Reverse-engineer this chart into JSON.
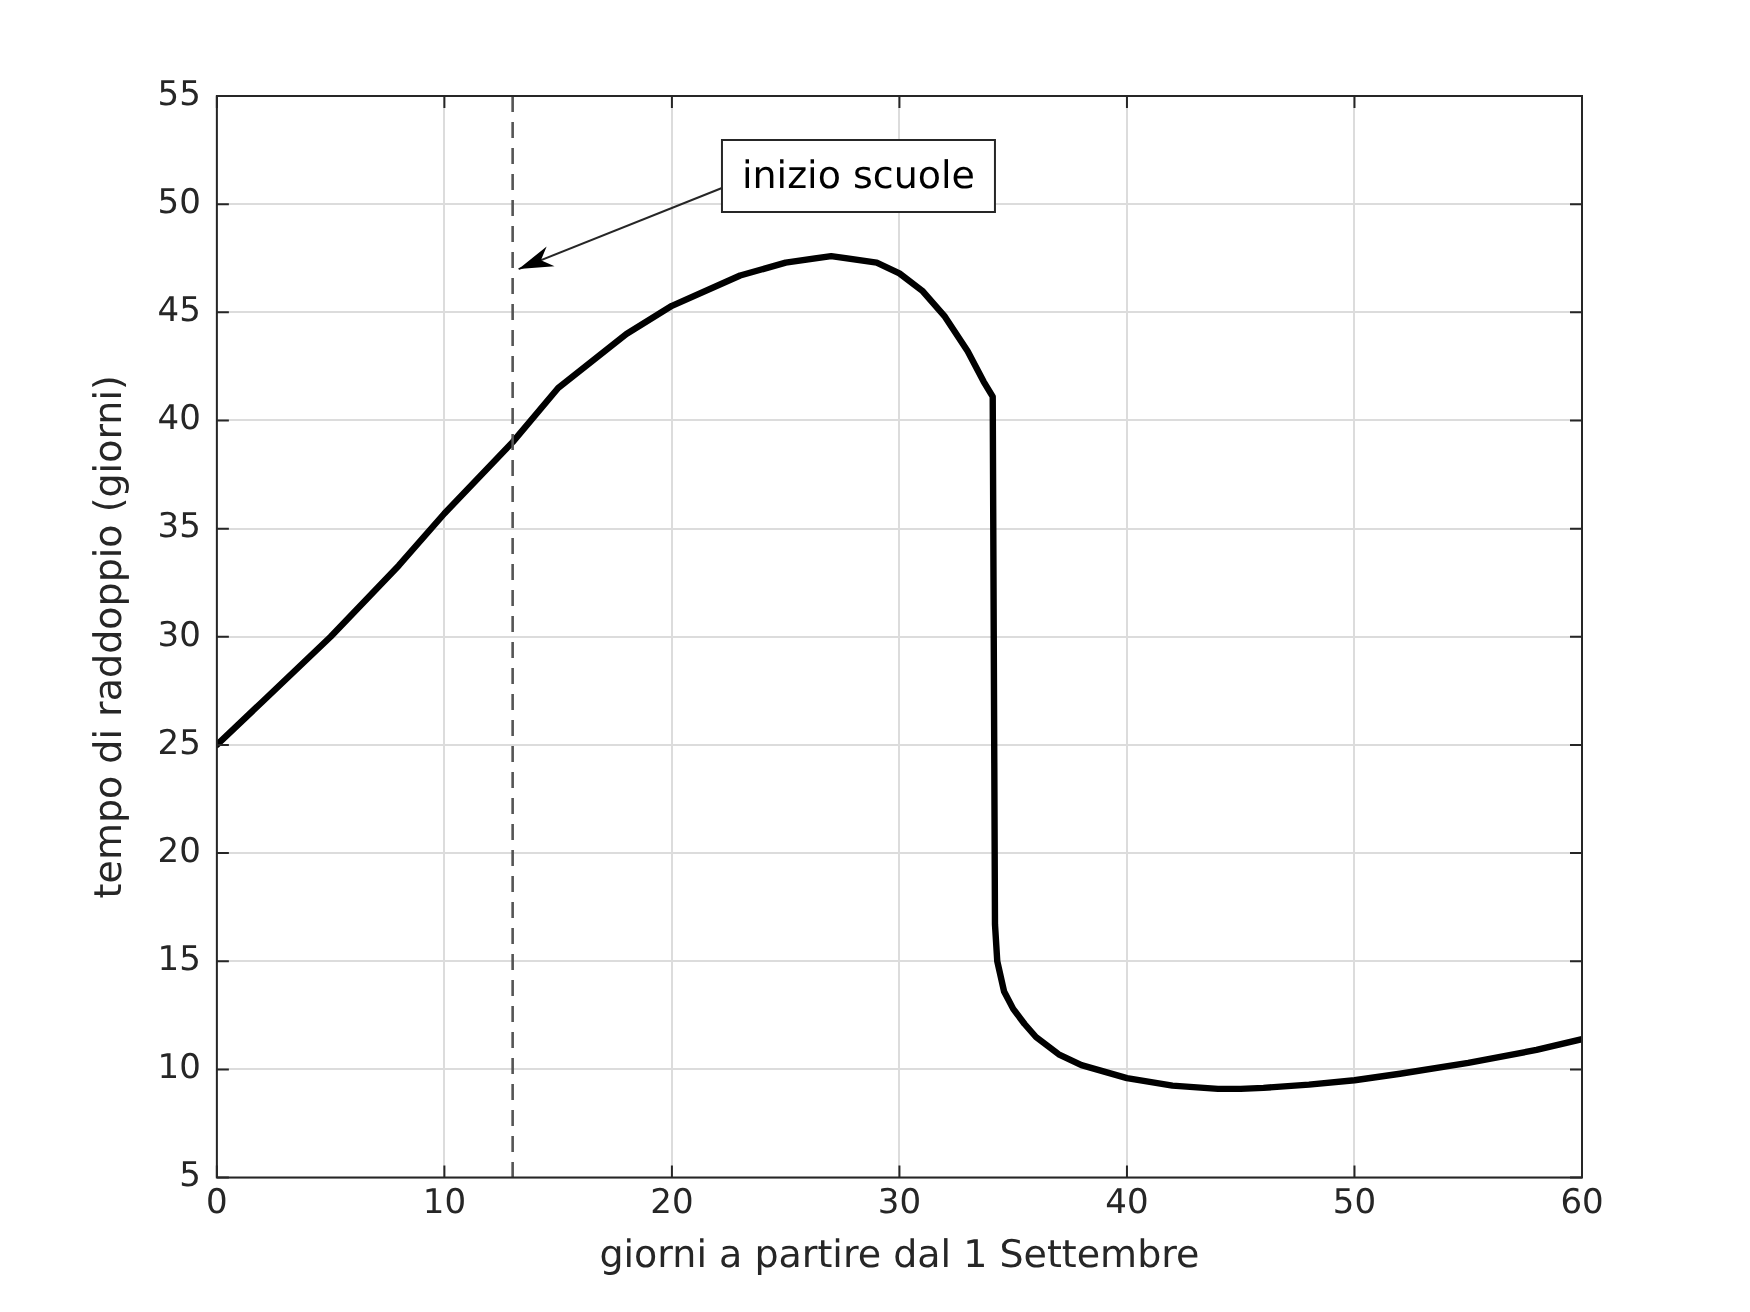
{
  "chart_data": {
    "type": "line",
    "xlabel": "giorni a partire dal 1 Settembre",
    "ylabel": "tempo di raddoppio (giorni)",
    "xlim": [
      0,
      60
    ],
    "xticks": [
      0,
      10,
      20,
      30,
      40,
      50,
      60
    ],
    "ylim": [
      5,
      55
    ],
    "yticks": [
      5,
      10,
      15,
      20,
      25,
      30,
      35,
      40,
      45,
      50,
      55
    ],
    "grid": true,
    "marker": "none",
    "line_style": "solid",
    "series": [
      {
        "color": "#000000",
        "x": [
          0,
          2,
          5,
          8,
          10,
          13,
          15,
          18,
          20,
          23,
          25,
          27,
          29,
          30,
          31,
          32,
          33,
          33.7,
          34.1,
          34.2,
          34.3,
          34.6,
          35,
          35.5,
          36,
          37,
          38,
          40,
          42,
          44,
          45,
          46,
          48,
          50,
          52,
          55,
          58,
          60
        ],
        "values": [
          25,
          27,
          30,
          33.3,
          35.7,
          39,
          41.5,
          44,
          45.3,
          46.7,
          47.3,
          47.6,
          47.3,
          46.8,
          46,
          44.8,
          43.2,
          41.8,
          41.1,
          16.7,
          15,
          13.6,
          12.8,
          12.1,
          11.5,
          10.7,
          10.2,
          9.6,
          9.25,
          9.1,
          9.1,
          9.15,
          9.3,
          9.5,
          9.8,
          10.3,
          10.9,
          11.4
        ]
      }
    ],
    "ref_lines": [
      {
        "axis": "x",
        "value": 13,
        "color": "#555555",
        "line_style": "dashed"
      }
    ],
    "annotations": [
      {
        "text": "inizio scuole",
        "x": 13,
        "y": 47
      }
    ]
  }
}
